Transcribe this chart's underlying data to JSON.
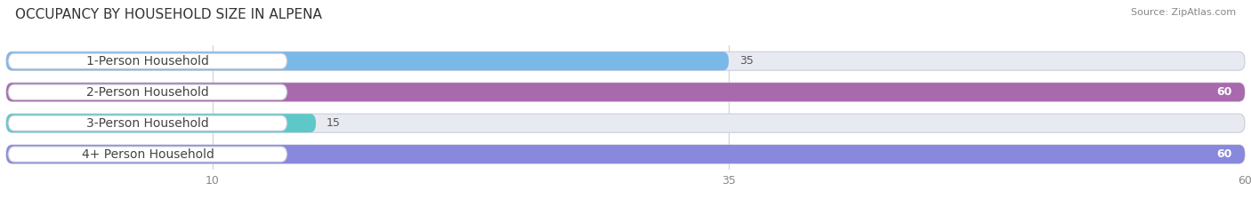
{
  "title": "OCCUPANCY BY HOUSEHOLD SIZE IN ALPENA",
  "source": "Source: ZipAtlas.com",
  "categories": [
    "1-Person Household",
    "2-Person Household",
    "3-Person Household",
    "4+ Person Household"
  ],
  "values": [
    35,
    60,
    15,
    60
  ],
  "bar_colors": [
    "#7ab8e8",
    "#a86aad",
    "#5ec8c8",
    "#8888dd"
  ],
  "bar_bg_color": "#e8eaf2",
  "label_bg_color": "#ffffff",
  "xlim": [
    0,
    60
  ],
  "xticks": [
    10,
    35,
    60
  ],
  "bar_height": 0.6,
  "title_fontsize": 11,
  "label_fontsize": 10,
  "tick_fontsize": 9,
  "value_fontsize": 9,
  "background_color": "#ffffff"
}
